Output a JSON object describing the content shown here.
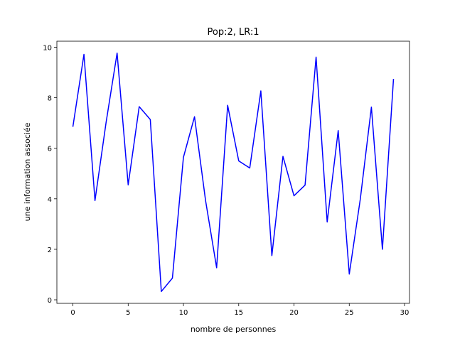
{
  "chart_data": {
    "type": "line",
    "title": "Pop:2, LR:1",
    "xlabel": "nombre de personnes",
    "ylabel": "une information associée",
    "xlim": [
      -1.45,
      30.45
    ],
    "ylim": [
      -0.14,
      10.24
    ],
    "xticks": [
      0,
      5,
      10,
      15,
      20,
      25,
      30
    ],
    "yticks": [
      0,
      2,
      4,
      6,
      8,
      10
    ],
    "grid": false,
    "series": [
      {
        "color": "#0000ff",
        "x": [
          0,
          1,
          2,
          3,
          4,
          5,
          6,
          7,
          8,
          9,
          10,
          11,
          12,
          13,
          14,
          15,
          16,
          17,
          18,
          19,
          20,
          21,
          22,
          23,
          24,
          25,
          26,
          27,
          28,
          29
        ],
        "y": [
          6.85,
          9.72,
          3.93,
          7.02,
          9.77,
          4.55,
          7.65,
          7.14,
          0.33,
          0.86,
          5.64,
          7.25,
          3.94,
          1.27,
          7.7,
          5.5,
          5.22,
          8.27,
          1.75,
          5.68,
          4.12,
          4.54,
          9.61,
          3.08,
          6.7,
          1.02,
          3.99,
          7.63,
          2.0,
          8.75
        ]
      }
    ]
  }
}
